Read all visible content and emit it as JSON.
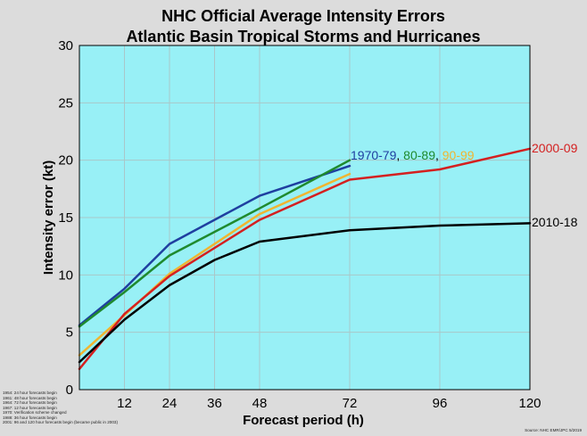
{
  "chart_data": {
    "type": "line",
    "title": [
      "NHC Official Average Intensity Errors",
      "Atlantic Basin Tropical Storms and Hurricanes"
    ],
    "xlabel": "Forecast period (h)",
    "ylabel": "Intensity error (kt)",
    "xlim": [
      0,
      120
    ],
    "ylim": [
      0,
      30
    ],
    "xticks": [
      12,
      24,
      36,
      48,
      72,
      96,
      120
    ],
    "yticks": [
      0,
      5,
      10,
      15,
      20,
      25,
      30
    ],
    "grid": true,
    "series": [
      {
        "name": "1970-79",
        "color": "#1f3fa0",
        "x": [
          0,
          12,
          24,
          48,
          72
        ],
        "y": [
          5.6,
          8.8,
          12.7,
          16.9,
          19.5
        ]
      },
      {
        "name": "80-89",
        "color": "#1f8a2e",
        "x": [
          0,
          12,
          24,
          48,
          72
        ],
        "y": [
          5.5,
          8.5,
          11.7,
          15.8,
          20.0
        ]
      },
      {
        "name": "90-99",
        "color": "#f0b530",
        "x": [
          0,
          12,
          24,
          48,
          72
        ],
        "y": [
          3.0,
          6.5,
          10.1,
          15.3,
          18.8
        ]
      },
      {
        "name": "2000-09",
        "color": "#d42020",
        "x": [
          0,
          12,
          24,
          48,
          72,
          96,
          120
        ],
        "y": [
          1.8,
          6.6,
          9.9,
          14.8,
          18.3,
          19.2,
          21.0
        ]
      },
      {
        "name": "2010-18",
        "color": "#000000",
        "x": [
          0,
          12,
          24,
          36,
          48,
          72,
          96,
          120
        ],
        "y": [
          2.4,
          6.1,
          9.1,
          11.3,
          12.9,
          13.9,
          14.3,
          14.5
        ]
      }
    ],
    "label_group_top": [
      "1970-79",
      ", ",
      "80-89",
      ", ",
      "90-99"
    ]
  },
  "notes": [
    "1954:  24 hour forecasts begin",
    "1961:  48 hour forecasts begin",
    "1964:  72 hour forecasts begin",
    "1967:  12 hour forecasts begin",
    "1970:  Verification scheme changed",
    "1988:  36 hour forecasts begin",
    "2001:  96 and 120 hour forecasts begin  (became public in 2003)"
  ],
  "source": "Source: NHC EMR/JPC 5/2019"
}
